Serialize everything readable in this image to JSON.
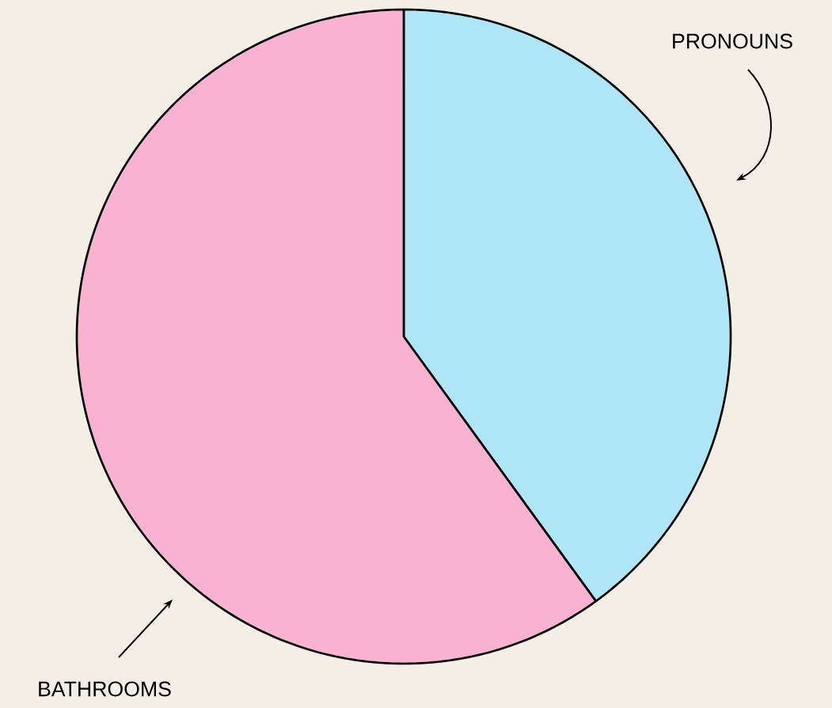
{
  "chart_data": {
    "type": "pie",
    "categories": [
      "PRONOUNS",
      "BATHROOMS"
    ],
    "values": [
      40,
      60
    ],
    "colors": [
      "#aee6f8",
      "#f9b2cf"
    ]
  }
}
